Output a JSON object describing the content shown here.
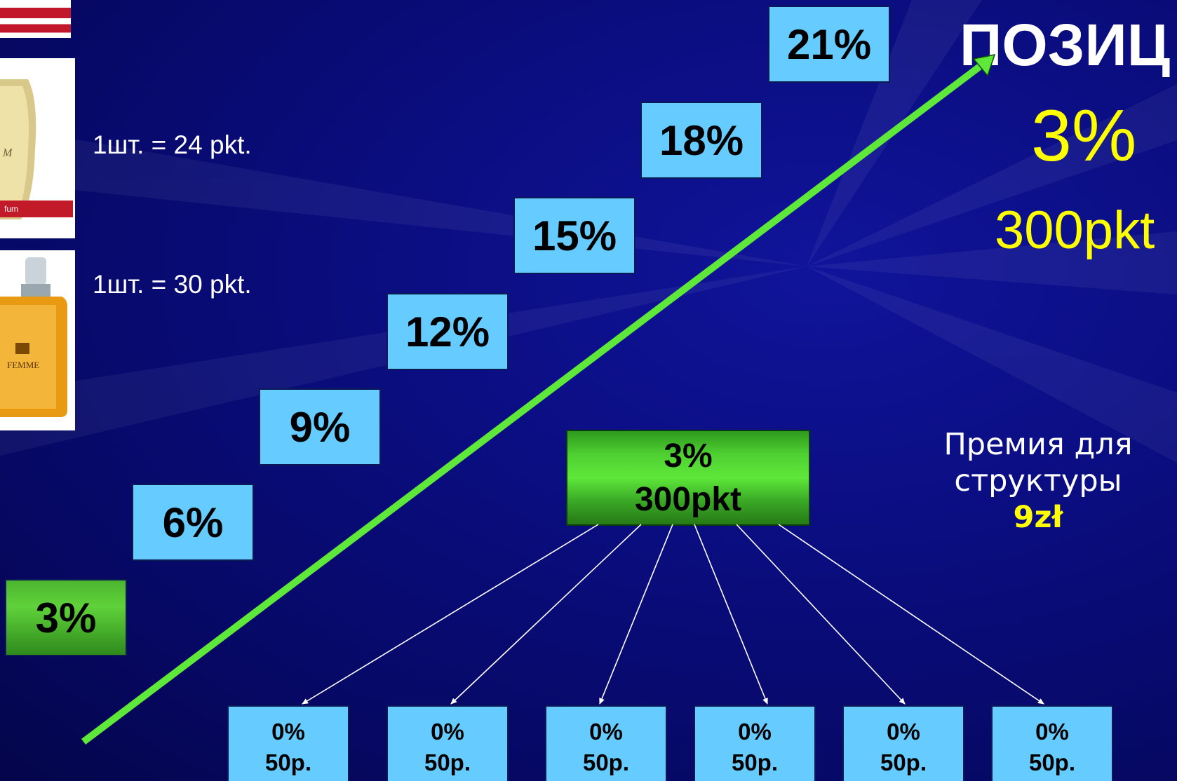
{
  "products": [
    {
      "image": "perfume-bottle-white-box",
      "label": "1шт. = 24 pkt."
    },
    {
      "image": "perfume-bottle-amber",
      "label": "1шт. = 30 pkt."
    }
  ],
  "steps": [
    "3%",
    "6%",
    "9%",
    "12%",
    "15%",
    "18%",
    "21%"
  ],
  "center": {
    "percent": "3%",
    "points": "300pkt"
  },
  "children": [
    {
      "percent": "0%",
      "points": "50p."
    },
    {
      "percent": "0%",
      "points": "50p."
    },
    {
      "percent": "0%",
      "points": "50p."
    },
    {
      "percent": "0%",
      "points": "50p."
    },
    {
      "percent": "0%",
      "points": "50p."
    },
    {
      "percent": "0%",
      "points": "50p."
    }
  ],
  "position": {
    "title": "ПОЗИЦ",
    "percent": "3%",
    "points": "300pkt"
  },
  "bonus": {
    "line1": "Премия для",
    "line2": "структуры",
    "amount": "9zł"
  },
  "colors": {
    "background": "#0a0d7e",
    "step_box": "#66ccff",
    "green": "#4fd032",
    "yellow": "#ffff00",
    "arrow_line": "#5ee83a"
  }
}
